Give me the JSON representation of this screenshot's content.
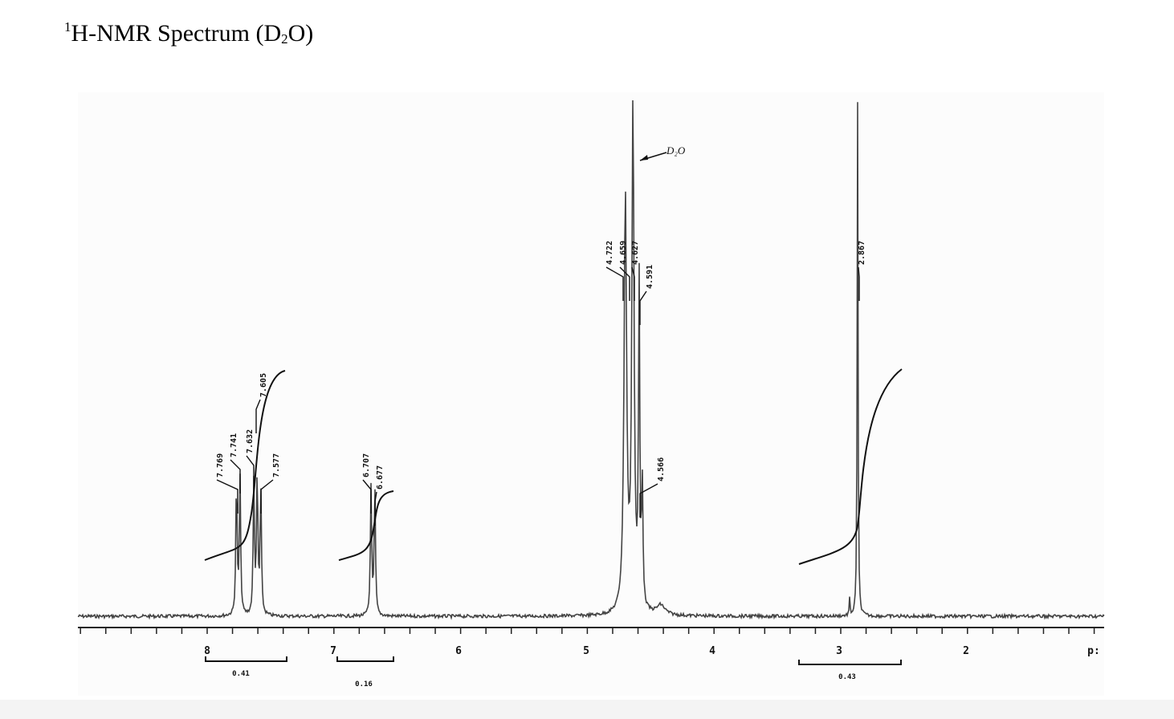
{
  "header": {
    "title": {
      "sup": "1",
      "main": "H-NMR Spectrum (D",
      "sub": "2",
      "end": "O)"
    }
  },
  "spectrum": {
    "axis_labels": [
      "8",
      "7",
      "6",
      "5",
      "4",
      "3",
      "2",
      "p:"
    ],
    "peak_labels": [
      "7.769",
      "7.741",
      "7.632",
      "7.605",
      "7.577",
      "6.707",
      "6.677",
      "4.722",
      "4.659",
      "4.627",
      "4.591",
      "4.566",
      "2.867"
    ],
    "integrals": [
      "0.41",
      "0.16",
      "0.43"
    ],
    "annotation": "D₂O"
  }
}
